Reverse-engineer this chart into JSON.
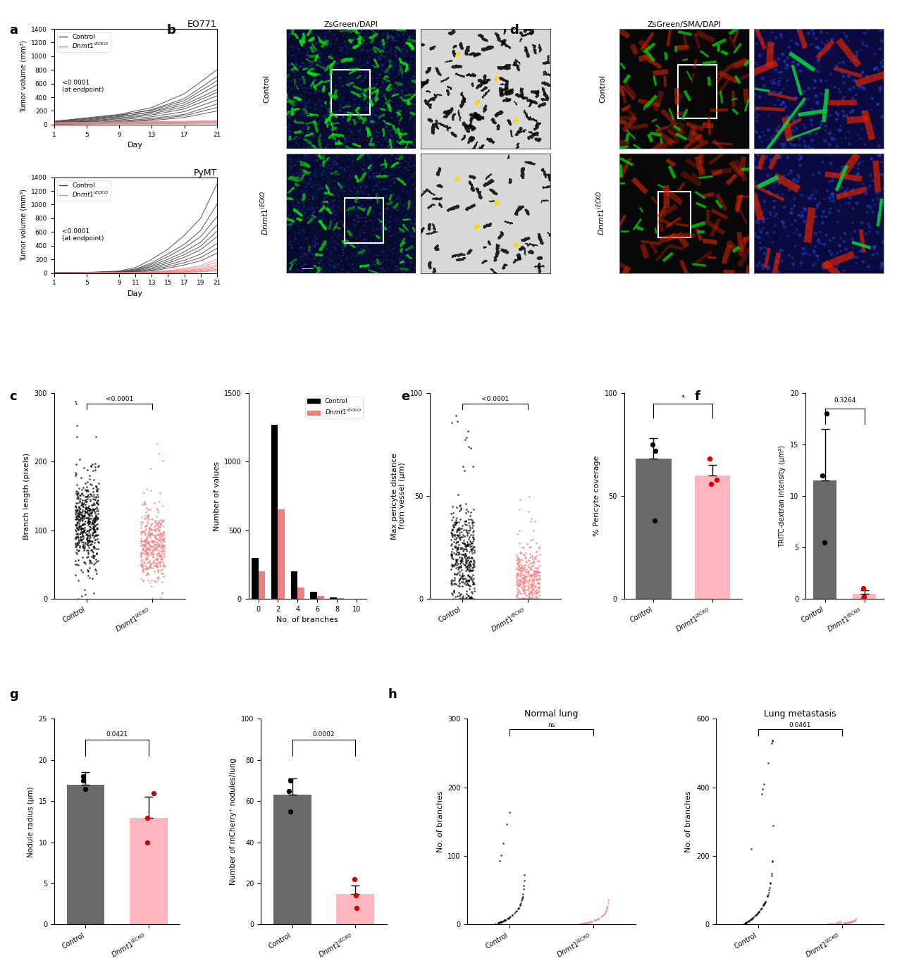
{
  "panel_a_eo771": {
    "title": "EO771",
    "xlabel": "Day",
    "ylabel": "Tumor volume (mm³)",
    "ylim": [
      0,
      1400
    ],
    "yticks": [
      0,
      200,
      400,
      600,
      800,
      1000,
      1200,
      1400
    ],
    "xticks": [
      1,
      5,
      9,
      13,
      17,
      21
    ],
    "pval": "<0.0001\n(at endpoint)",
    "ctrl_days": [
      1,
      5,
      9,
      13,
      17,
      21
    ],
    "ctrl_lines": [
      [
        50,
        100,
        150,
        250,
        450,
        800
      ],
      [
        40,
        80,
        130,
        220,
        380,
        700
      ],
      [
        30,
        60,
        110,
        190,
        320,
        580
      ],
      [
        45,
        90,
        140,
        210,
        350,
        640
      ],
      [
        35,
        70,
        120,
        180,
        290,
        510
      ],
      [
        25,
        50,
        95,
        160,
        260,
        470
      ],
      [
        20,
        45,
        85,
        140,
        230,
        420
      ],
      [
        15,
        35,
        70,
        115,
        190,
        360
      ],
      [
        10,
        25,
        55,
        90,
        150,
        300
      ],
      [
        8,
        20,
        45,
        75,
        130,
        250
      ],
      [
        5,
        15,
        35,
        60,
        105,
        200
      ]
    ],
    "ko_days": [
      1,
      5,
      9,
      13,
      17,
      21
    ],
    "ko_lines": [
      [
        30,
        35,
        40,
        45,
        50,
        60
      ],
      [
        25,
        30,
        35,
        38,
        42,
        50
      ],
      [
        20,
        25,
        28,
        32,
        36,
        42
      ],
      [
        15,
        20,
        22,
        25,
        28,
        34
      ],
      [
        10,
        15,
        18,
        20,
        22,
        28
      ],
      [
        8,
        12,
        15,
        18,
        20,
        24
      ],
      [
        5,
        10,
        12,
        15,
        18,
        22
      ]
    ]
  },
  "panel_a_pymt": {
    "title": "PyMT",
    "xlabel": "Day",
    "ylabel": "Tumor volume (mm³)",
    "ylim": [
      0,
      1400
    ],
    "yticks": [
      0,
      200,
      400,
      600,
      800,
      1000,
      1200,
      1400
    ],
    "xticks": [
      1,
      5,
      9,
      11,
      13,
      15,
      17,
      19,
      21
    ],
    "pval": "<0.0001\n(at endpoint)",
    "ctrl_days": [
      1,
      5,
      9,
      11,
      13,
      15,
      17,
      19,
      21
    ],
    "ctrl_lines": [
      [
        5,
        10,
        30,
        80,
        200,
        350,
        550,
        800,
        1300
      ],
      [
        5,
        8,
        20,
        60,
        150,
        280,
        420,
        620,
        1000
      ],
      [
        4,
        7,
        18,
        50,
        130,
        240,
        370,
        530,
        820
      ],
      [
        3,
        6,
        15,
        40,
        110,
        200,
        310,
        450,
        700
      ],
      [
        3,
        5,
        12,
        35,
        95,
        170,
        270,
        390,
        610
      ],
      [
        2,
        4,
        10,
        25,
        75,
        145,
        230,
        340,
        530
      ],
      [
        2,
        3,
        8,
        20,
        58,
        120,
        185,
        275,
        430
      ],
      [
        1,
        3,
        6,
        15,
        42,
        95,
        150,
        225,
        360
      ],
      [
        1,
        2,
        5,
        10,
        30,
        72,
        118,
        178,
        290
      ]
    ],
    "ko_days": [
      1,
      5,
      9,
      11,
      13,
      15,
      17,
      19,
      21
    ],
    "ko_lines": [
      [
        3,
        5,
        8,
        12,
        20,
        38,
        65,
        110,
        200
      ],
      [
        2,
        4,
        6,
        10,
        16,
        30,
        52,
        88,
        160
      ],
      [
        2,
        3,
        5,
        8,
        13,
        22,
        38,
        65,
        120
      ],
      [
        1,
        3,
        4,
        6,
        10,
        17,
        30,
        52,
        95
      ],
      [
        1,
        2,
        3,
        5,
        8,
        13,
        22,
        38,
        70
      ],
      [
        1,
        2,
        3,
        4,
        6,
        10,
        17,
        30,
        55
      ],
      [
        1,
        1,
        2,
        3,
        5,
        8,
        13,
        22,
        40
      ],
      [
        1,
        1,
        2,
        3,
        4,
        6,
        10,
        17,
        32
      ]
    ]
  },
  "panel_c_scatter": {
    "ylabel": "Branch length (pixels)",
    "ylim": [
      0,
      300
    ],
    "yticks": [
      0,
      100,
      200,
      300
    ],
    "pval": "<0.0001",
    "ctrl_mean": 110,
    "ctrl_std": 35,
    "ctrl_n": 500,
    "ko_mean": 80,
    "ko_std": 28,
    "ko_n": 400
  },
  "panel_c_bar": {
    "ylabel": "Number of values",
    "xlabel": "No. of branches",
    "ylim": [
      0,
      1500
    ],
    "yticks": [
      0,
      500,
      1000,
      1500
    ],
    "xvals": [
      0,
      2,
      4,
      6,
      8,
      10
    ],
    "ctrl_vals": [
      300,
      1270,
      200,
      50,
      10,
      2
    ],
    "ko_vals": [
      200,
      650,
      80,
      20,
      5,
      1
    ]
  },
  "panel_e_scatter": {
    "ylabel": "Max pericyte distance\nfrom vessel (μm)",
    "ylim": [
      0,
      100
    ],
    "yticks": [
      0,
      50,
      100
    ],
    "pval": "<0.0001",
    "ctrl_mean": 20,
    "ctrl_std": 12,
    "ctrl_n": 400,
    "ko_mean": 10,
    "ko_std": 8,
    "ko_n": 350
  },
  "panel_e_bar": {
    "ylabel": "% Pericyte coverage",
    "ylim": [
      0,
      100
    ],
    "yticks": [
      0,
      50,
      100
    ],
    "pval": "*",
    "ctrl_val": 68,
    "ko_val": 60,
    "ctrl_err": 10,
    "ko_err": 5,
    "ctrl_pts": [
      38,
      75,
      72
    ],
    "ko_pts": [
      68,
      58,
      56
    ]
  },
  "panel_f": {
    "ylabel": "TRITC-dextran intensity (μm²)",
    "ylim": [
      0,
      20
    ],
    "yticks": [
      0,
      5,
      10,
      15,
      20
    ],
    "pval": "0.3264",
    "ctrl_val": 11.5,
    "ko_val": 0.5,
    "ctrl_err": 5,
    "ko_err": 0.3,
    "ctrl_pts": [
      5.5,
      12,
      18
    ],
    "ko_pts": [
      0.05,
      0.2,
      1.0
    ]
  },
  "panel_g_radius": {
    "ylabel": "Nodule radius (μm)",
    "ylim": [
      0,
      25
    ],
    "yticks": [
      0,
      5,
      10,
      15,
      20,
      25
    ],
    "pval": "0.0421",
    "ctrl_val": 17,
    "ko_val": 13,
    "ctrl_err": 1.5,
    "ko_err": 2.5,
    "ctrl_pts": [
      16.5,
      17.5,
      18
    ],
    "ko_pts": [
      10,
      13,
      16
    ]
  },
  "panel_g_nodules": {
    "ylabel": "Number of mCherry⁺ nodules/lung",
    "ylim": [
      0,
      100
    ],
    "yticks": [
      0,
      20,
      40,
      60,
      80,
      100
    ],
    "pval": "0.0002",
    "ctrl_val": 63,
    "ko_val": 15,
    "ctrl_err": 8,
    "ko_err": 4,
    "ctrl_pts": [
      55,
      65,
      70
    ],
    "ko_pts": [
      8,
      14,
      22
    ]
  },
  "panel_h_normal": {
    "title": "Normal lung",
    "ylabel": "No. of branches",
    "ylim": [
      0,
      300
    ],
    "yticks": [
      0,
      100,
      200,
      300
    ],
    "pval": "ns",
    "ctrl_mean": 15,
    "ctrl_std": 25,
    "ctrl_n": 50,
    "ko_mean": 8,
    "ko_std": 15,
    "ko_n": 40
  },
  "panel_h_meta": {
    "title": "Lung metastasis",
    "ylabel": "No. of branches",
    "ylim": [
      0,
      600
    ],
    "yticks": [
      0,
      200,
      400,
      600
    ],
    "pval": "0.0461",
    "ctrl_mean": 50,
    "ctrl_std": 70,
    "ctrl_n": 55,
    "ko_mean": 5,
    "ko_std": 8,
    "ko_n": 45
  },
  "colors": {
    "ctrl_line": "#3a3a3a",
    "ko_line": "#F08080",
    "ctrl_bar": "#696969",
    "ko_bar": "#FFB6C1",
    "black": "#1a1a1a",
    "pink": "#F08080",
    "red_dot": "#CC0000"
  }
}
